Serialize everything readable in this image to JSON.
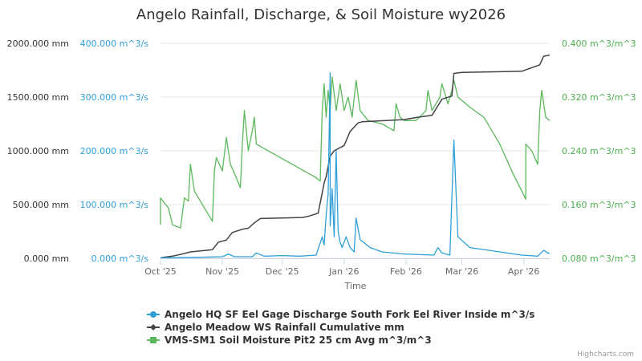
{
  "chart_data": {
    "type": "line",
    "title": "Angelo Rainfall, Discharge, & Soil Moisture wy2026",
    "xlabel": "Time",
    "x_ticks": [
      "Oct '25",
      "Nov '25",
      "Dec '25",
      "Jan '26",
      "Feb '26",
      "Mar '26",
      "Apr '26"
    ],
    "x_range": [
      "2025-10-01",
      "2026-04-14"
    ],
    "y_axes": [
      {
        "id": "rain",
        "ticks": [
          "0.000 mm",
          "500.000 mm",
          "1000.000 mm",
          "1500.000 mm",
          "2000.000 mm"
        ],
        "ylim": [
          0,
          2000
        ],
        "color": "#333333"
      },
      {
        "id": "discharge",
        "ticks": [
          "0.000 m^3/s",
          "100.000 m^3/s",
          "200.000 m^3/s",
          "300.000 m^3/s",
          "400.000 m^3/s"
        ],
        "ylim": [
          0,
          400
        ],
        "color": "#2f9fd8"
      },
      {
        "id": "soil",
        "ticks": [
          "0.080 m^3/m^3",
          "0.160 m^3/m^3",
          "0.240 m^3/m^3",
          "0.320 m^3/m^3",
          "0.400 m^3/m^3"
        ],
        "ylim": [
          0.08,
          0.4
        ],
        "color": "#4caf50"
      }
    ],
    "series": [
      {
        "name": "Angelo HQ SF Eel Gage Discharge South Fork Eel River Inside m^3/s",
        "axis": "discharge",
        "color": "#2f9fd8",
        "points": [
          [
            "2025-10-01",
            1
          ],
          [
            "2025-10-20",
            2
          ],
          [
            "2025-11-01",
            3
          ],
          [
            "2025-11-04",
            8
          ],
          [
            "2025-11-07",
            3
          ],
          [
            "2025-11-16",
            3
          ],
          [
            "2025-11-18",
            10
          ],
          [
            "2025-11-22",
            4
          ],
          [
            "2025-12-01",
            5
          ],
          [
            "2025-12-10",
            4
          ],
          [
            "2025-12-18",
            6
          ],
          [
            "2025-12-21",
            40
          ],
          [
            "2025-12-22",
            25
          ],
          [
            "2025-12-23",
            80
          ],
          [
            "2025-12-24",
            120
          ],
          [
            "2025-12-25",
            345
          ],
          [
            "2025-12-25",
            60
          ],
          [
            "2025-12-26",
            130
          ],
          [
            "2025-12-27",
            40
          ],
          [
            "2025-12-28",
            200
          ],
          [
            "2025-12-29",
            50
          ],
          [
            "2025-12-30",
            30
          ],
          [
            "2025-12-31",
            20
          ],
          [
            "2026-01-02",
            40
          ],
          [
            "2026-01-04",
            20
          ],
          [
            "2026-01-06",
            12
          ],
          [
            "2026-01-07",
            75
          ],
          [
            "2026-01-09",
            35
          ],
          [
            "2026-01-14",
            20
          ],
          [
            "2026-01-20",
            12
          ],
          [
            "2026-01-31",
            8
          ],
          [
            "2026-02-15",
            6
          ],
          [
            "2026-02-17",
            20
          ],
          [
            "2026-02-19",
            10
          ],
          [
            "2026-02-23",
            6
          ],
          [
            "2026-02-25",
            220
          ],
          [
            "2026-02-27",
            40
          ],
          [
            "2026-03-05",
            20
          ],
          [
            "2026-03-20",
            12
          ],
          [
            "2026-03-31",
            6
          ],
          [
            "2026-04-08",
            4
          ],
          [
            "2026-04-11",
            15
          ],
          [
            "2026-04-13",
            10
          ],
          [
            "2026-04-14",
            9
          ]
        ]
      },
      {
        "name": "Angelo Meadow WS Rainfall Cumulative mm",
        "axis": "rain",
        "color": "#434348",
        "points": [
          [
            "2025-10-01",
            5
          ],
          [
            "2025-10-07",
            20
          ],
          [
            "2025-10-13",
            45
          ],
          [
            "2025-10-16",
            60
          ],
          [
            "2025-10-27",
            80
          ],
          [
            "2025-10-30",
            150
          ],
          [
            "2025-11-03",
            170
          ],
          [
            "2025-11-06",
            240
          ],
          [
            "2025-11-11",
            270
          ],
          [
            "2025-11-14",
            280
          ],
          [
            "2025-11-17",
            330
          ],
          [
            "2025-11-20",
            370
          ],
          [
            "2025-12-11",
            380
          ],
          [
            "2025-12-14",
            390
          ],
          [
            "2025-12-19",
            420
          ],
          [
            "2025-12-22",
            700
          ],
          [
            "2025-12-23",
            760
          ],
          [
            "2025-12-25",
            950
          ],
          [
            "2025-12-27",
            1000
          ],
          [
            "2026-01-01",
            1050
          ],
          [
            "2026-01-04",
            1180
          ],
          [
            "2026-01-08",
            1260
          ],
          [
            "2026-01-10",
            1270
          ],
          [
            "2026-01-31",
            1290
          ],
          [
            "2026-02-06",
            1310
          ],
          [
            "2026-02-14",
            1330
          ],
          [
            "2026-02-19",
            1480
          ],
          [
            "2026-02-24",
            1510
          ],
          [
            "2026-02-25",
            1720
          ],
          [
            "2026-03-01",
            1730
          ],
          [
            "2026-03-31",
            1740
          ],
          [
            "2026-04-09",
            1800
          ],
          [
            "2026-04-11",
            1880
          ],
          [
            "2026-04-14",
            1890
          ]
        ]
      },
      {
        "name": "VMS-SM1 Soil Moisture Pit2 25 cm Avg m^3/m^3",
        "axis": "soil",
        "color": "#5cb85c",
        "points": [
          [
            "2025-10-01",
            0.13
          ],
          [
            "2025-10-01",
            0.17
          ],
          [
            "2025-10-05",
            0.155
          ],
          [
            "2025-10-07",
            0.13
          ],
          [
            "2025-10-11",
            0.125
          ],
          [
            "2025-10-13",
            0.17
          ],
          [
            "2025-10-15",
            0.165
          ],
          [
            "2025-10-16",
            0.22
          ],
          [
            "2025-10-18",
            0.18
          ],
          [
            "2025-10-24",
            0.15
          ],
          [
            "2025-10-27",
            0.135
          ],
          [
            "2025-10-28",
            0.21
          ],
          [
            "2025-10-29",
            0.23
          ],
          [
            "2025-11-01",
            0.21
          ],
          [
            "2025-11-02",
            0.235
          ],
          [
            "2025-11-03",
            0.26
          ],
          [
            "2025-11-05",
            0.22
          ],
          [
            "2025-11-08",
            0.2
          ],
          [
            "2025-11-10",
            0.185
          ],
          [
            "2025-11-11",
            0.25
          ],
          [
            "2025-11-12",
            0.3
          ],
          [
            "2025-11-14",
            0.24
          ],
          [
            "2025-11-16",
            0.27
          ],
          [
            "2025-11-17",
            0.29
          ],
          [
            "2025-11-18",
            0.25
          ],
          [
            "2025-11-21",
            0.245
          ],
          [
            "2025-11-30",
            0.23
          ],
          [
            "2025-12-09",
            0.215
          ],
          [
            "2025-12-18",
            0.2
          ],
          [
            "2025-12-20",
            0.195
          ],
          [
            "2025-12-21",
            0.3
          ],
          [
            "2025-12-22",
            0.34
          ],
          [
            "2025-12-23",
            0.29
          ],
          [
            "2025-12-24",
            0.33
          ],
          [
            "2025-12-25",
            0.3
          ],
          [
            "2025-12-26",
            0.35
          ],
          [
            "2025-12-28",
            0.3
          ],
          [
            "2025-12-30",
            0.34
          ],
          [
            "2026-01-01",
            0.3
          ],
          [
            "2026-01-03",
            0.32
          ],
          [
            "2026-01-05",
            0.29
          ],
          [
            "2026-01-07",
            0.345
          ],
          [
            "2026-01-09",
            0.3
          ],
          [
            "2026-01-13",
            0.285
          ],
          [
            "2026-01-20",
            0.28
          ],
          [
            "2026-01-26",
            0.27
          ],
          [
            "2026-01-27",
            0.31
          ],
          [
            "2026-01-29",
            0.29
          ],
          [
            "2026-01-31",
            0.285
          ],
          [
            "2026-02-06",
            0.285
          ],
          [
            "2026-02-11",
            0.3
          ],
          [
            "2026-02-12",
            0.33
          ],
          [
            "2026-02-14",
            0.3
          ],
          [
            "2026-02-18",
            0.32
          ],
          [
            "2026-02-19",
            0.34
          ],
          [
            "2026-02-22",
            0.31
          ],
          [
            "2026-02-24",
            0.33
          ],
          [
            "2026-02-25",
            0.345
          ],
          [
            "2026-02-27",
            0.32
          ],
          [
            "2026-03-05",
            0.305
          ],
          [
            "2026-03-12",
            0.29
          ],
          [
            "2026-03-20",
            0.25
          ],
          [
            "2026-03-26",
            0.21
          ],
          [
            "2026-03-31",
            0.18
          ],
          [
            "2026-04-02",
            0.168
          ],
          [
            "2026-04-02",
            0.25
          ],
          [
            "2026-04-05",
            0.24
          ],
          [
            "2026-04-08",
            0.22
          ],
          [
            "2026-04-09",
            0.3
          ],
          [
            "2026-04-10",
            0.33
          ],
          [
            "2026-04-11",
            0.31
          ],
          [
            "2026-04-12",
            0.29
          ],
          [
            "2026-04-14",
            0.285
          ]
        ]
      }
    ],
    "grid": true,
    "legend_position": "bottom-center"
  },
  "credits": "Highcharts.com"
}
